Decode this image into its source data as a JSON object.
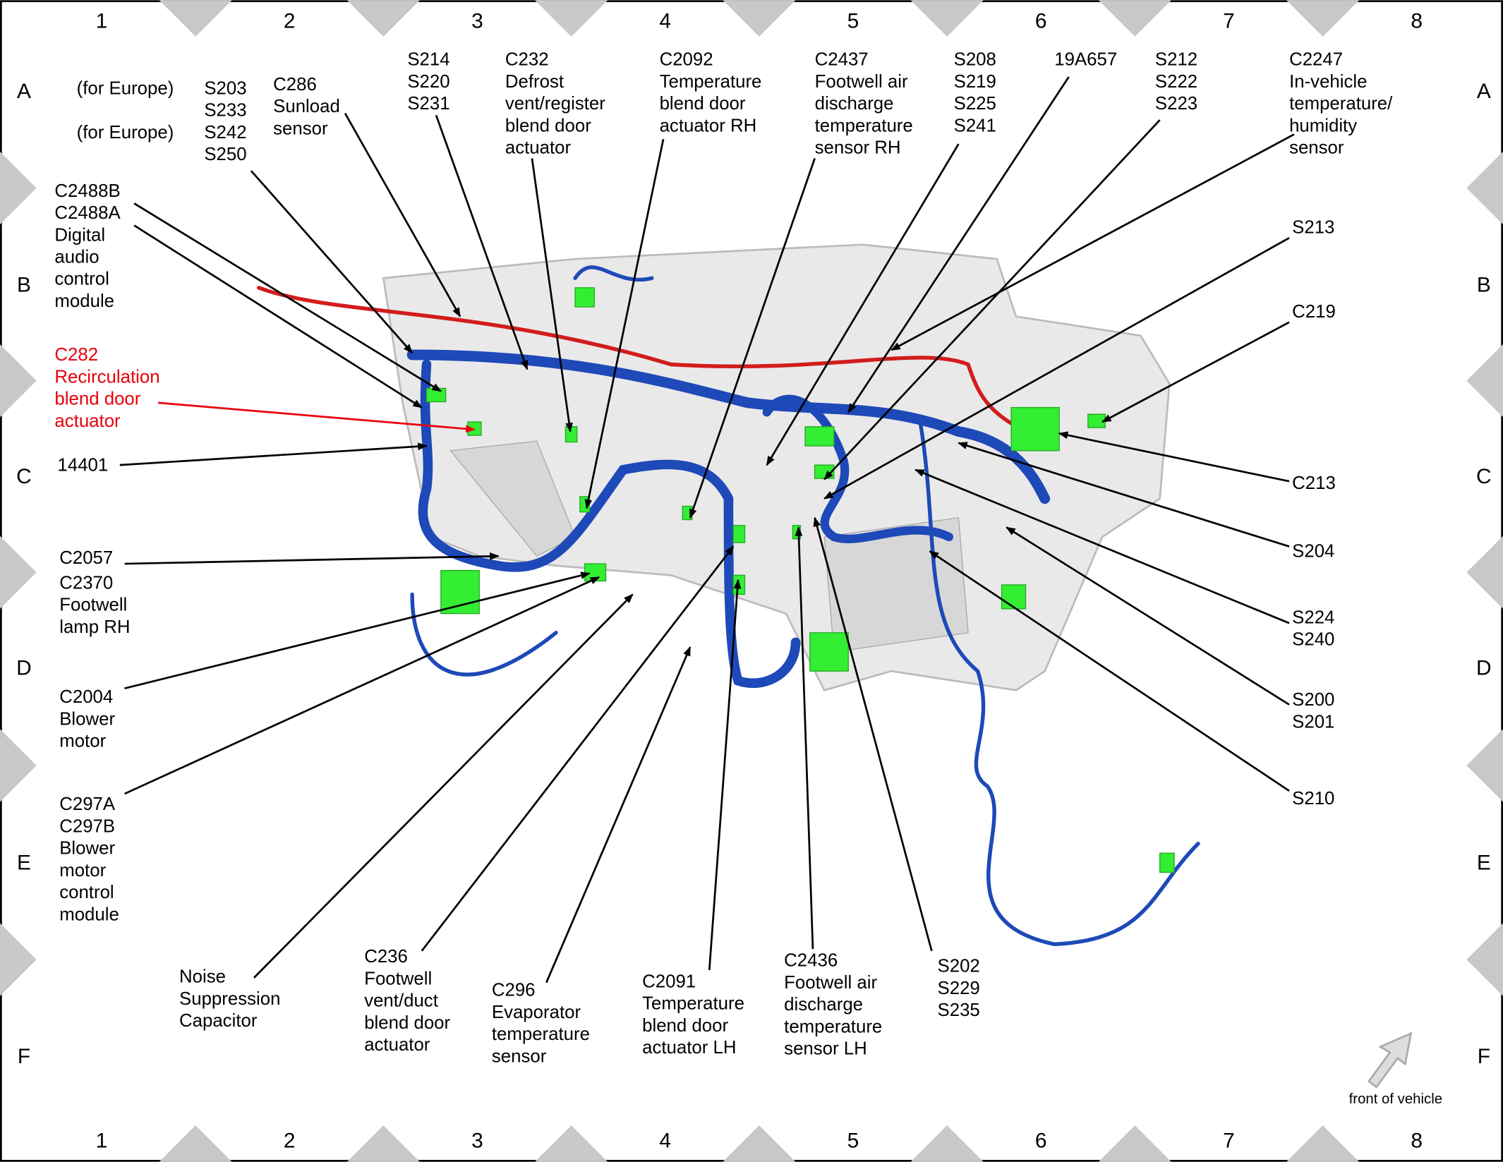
{
  "grid": {
    "columns": [
      "1",
      "2",
      "3",
      "4",
      "5",
      "6",
      "7",
      "8"
    ],
    "rows": [
      "A",
      "B",
      "C",
      "D",
      "E",
      "F"
    ]
  },
  "notes": [
    "(for Europe)",
    "(for Europe)"
  ],
  "labels": [
    {
      "lines": [
        "S203",
        "S233",
        "S242",
        "S250"
      ]
    },
    {
      "lines": [
        "C286",
        "Sunload",
        "sensor"
      ]
    },
    {
      "lines": [
        "S214",
        "S220",
        "S231"
      ]
    },
    {
      "lines": [
        "C232",
        "Defrost",
        "vent/register",
        "blend door",
        "actuator"
      ]
    },
    {
      "lines": [
        "C2092",
        "Temperature",
        "blend door",
        "actuator RH"
      ]
    },
    {
      "lines": [
        "C2437",
        "Footwell air",
        "discharge",
        "temperature",
        "sensor RH"
      ]
    },
    {
      "lines": [
        "S208",
        "S219",
        "S225",
        "S241"
      ]
    },
    {
      "lines": [
        "19A657"
      ]
    },
    {
      "lines": [
        "S212",
        "S222",
        "S223"
      ]
    },
    {
      "lines": [
        "C2247",
        "In-vehicle",
        "temperature/",
        "humidity",
        "sensor"
      ]
    },
    {
      "lines": [
        "S213"
      ]
    },
    {
      "lines": [
        "C219"
      ]
    },
    {
      "lines": [
        "C2488B",
        "C2488A",
        "Digital",
        "audio",
        "control",
        "module"
      ]
    },
    {
      "lines": [
        "C282",
        "Recirculation",
        "blend door",
        "actuator"
      ],
      "color": "#e8000b"
    },
    {
      "lines": [
        "14401"
      ]
    },
    {
      "lines": [
        "C2057"
      ]
    },
    {
      "lines": [
        "C2370",
        "Footwell",
        "lamp RH"
      ]
    },
    {
      "lines": [
        "C2004",
        "Blower",
        "motor"
      ]
    },
    {
      "lines": [
        "C297A",
        "C297B",
        "Blower",
        "motor",
        "control",
        "module"
      ]
    },
    {
      "lines": [
        "Noise",
        "Suppression",
        "Capacitor"
      ]
    },
    {
      "lines": [
        "C236",
        "Footwell",
        "vent/duct",
        "blend door",
        "actuator"
      ]
    },
    {
      "lines": [
        "C296",
        "Evaporator",
        "temperature",
        "sensor"
      ]
    },
    {
      "lines": [
        "C2091",
        "Temperature",
        "blend door",
        "actuator LH"
      ]
    },
    {
      "lines": [
        "C2436",
        "Footwell air",
        "discharge",
        "temperature",
        "sensor LH"
      ]
    },
    {
      "lines": [
        "S202",
        "S229",
        "S235"
      ]
    },
    {
      "lines": [
        "C213"
      ]
    },
    {
      "lines": [
        "S204"
      ]
    },
    {
      "lines": [
        "S224",
        "S240"
      ]
    },
    {
      "lines": [
        "S200",
        "S201"
      ]
    },
    {
      "lines": [
        "S210"
      ]
    }
  ],
  "caption": "front of vehicle"
}
